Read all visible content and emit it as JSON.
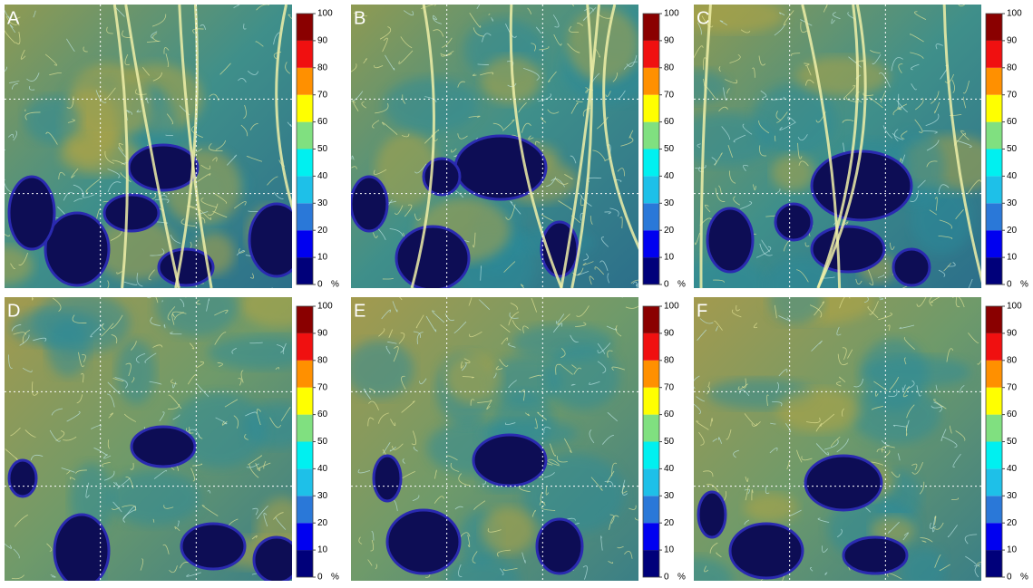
{
  "panels": [
    {
      "label": "A"
    },
    {
      "label": "B"
    },
    {
      "label": "C"
    },
    {
      "label": "D"
    },
    {
      "label": "E"
    },
    {
      "label": "F"
    }
  ],
  "colorbar": {
    "ticks": [
      0,
      10,
      20,
      30,
      40,
      50,
      60,
      70,
      80,
      90,
      100
    ],
    "unit": "%",
    "colors": [
      "#00007a",
      "#0000f0",
      "#2a78d8",
      "#1ec0e8",
      "#00f0f0",
      "#80e080",
      "#ffff00",
      "#ff9000",
      "#f01010",
      "#8a0000"
    ]
  }
}
